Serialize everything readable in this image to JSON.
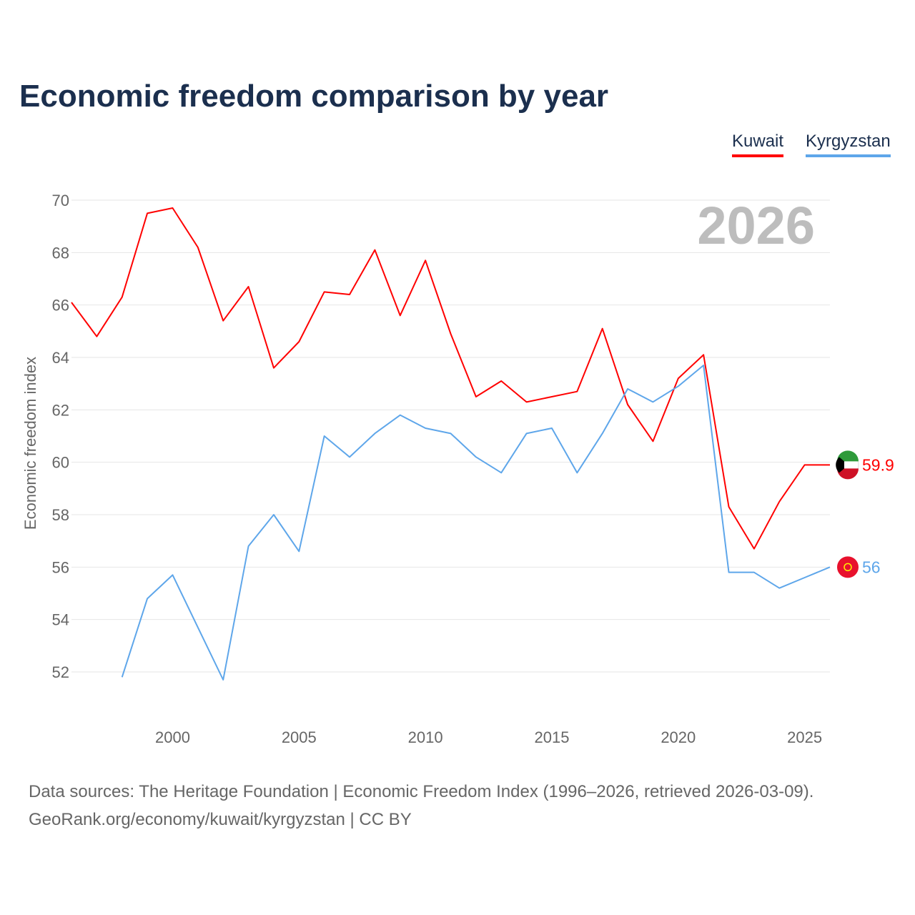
{
  "title": "Economic freedom comparison by year",
  "legend": {
    "kuwait": "Kuwait",
    "kyrgyzstan": "Kyrgyzstan"
  },
  "footer": {
    "line1": "Data sources: The Heritage Foundation | Economic Freedom Index (1996–2026, retrieved 2026-03-09).",
    "line2": "GeoRank.org/economy/kuwait/kyrgyzstan | CC BY"
  },
  "chart_data": {
    "type": "line",
    "title": "Economic freedom comparison by year",
    "xlabel": "",
    "ylabel": "Economic freedom index",
    "year_label": "2026",
    "xlim": [
      1996,
      2026
    ],
    "ylim": [
      50.5,
      70.5
    ],
    "xticks": [
      2000,
      2005,
      2010,
      2015,
      2020,
      2025
    ],
    "yticks": [
      52,
      54,
      56,
      58,
      60,
      62,
      64,
      66,
      68,
      70
    ],
    "grid": true,
    "legend_position": "top-right",
    "series": [
      {
        "name": "Kuwait",
        "color": "#ff0000",
        "end_label": "59.9",
        "x": [
          1996,
          1997,
          1998,
          1999,
          2000,
          2001,
          2002,
          2003,
          2004,
          2005,
          2006,
          2007,
          2008,
          2009,
          2010,
          2011,
          2012,
          2013,
          2014,
          2015,
          2016,
          2017,
          2018,
          2019,
          2020,
          2021,
          2022,
          2023,
          2024,
          2025,
          2026
        ],
        "values": [
          66.1,
          64.8,
          66.3,
          69.5,
          69.7,
          68.2,
          65.4,
          66.7,
          63.6,
          64.6,
          66.5,
          66.4,
          68.1,
          65.6,
          67.7,
          64.9,
          62.5,
          63.1,
          62.3,
          62.5,
          62.7,
          65.1,
          62.2,
          60.8,
          63.2,
          64.1,
          58.3,
          56.7,
          58.5,
          59.9,
          59.9
        ]
      },
      {
        "name": "Kyrgyzstan",
        "color": "#5ea6ea",
        "end_label": "56",
        "x": [
          1998,
          1999,
          2000,
          2001,
          2002,
          2003,
          2004,
          2005,
          2006,
          2007,
          2008,
          2009,
          2010,
          2011,
          2012,
          2013,
          2014,
          2015,
          2016,
          2017,
          2018,
          2019,
          2020,
          2021,
          2022,
          2023,
          2024,
          2025,
          2026
        ],
        "values": [
          51.8,
          54.8,
          55.7,
          53.7,
          51.7,
          56.8,
          58.0,
          56.6,
          61.0,
          60.2,
          61.1,
          61.8,
          61.3,
          61.1,
          60.2,
          59.6,
          61.1,
          61.3,
          59.6,
          61.1,
          62.8,
          62.3,
          62.9,
          63.7,
          55.8,
          55.8,
          55.2,
          55.6,
          56.0
        ]
      }
    ]
  }
}
